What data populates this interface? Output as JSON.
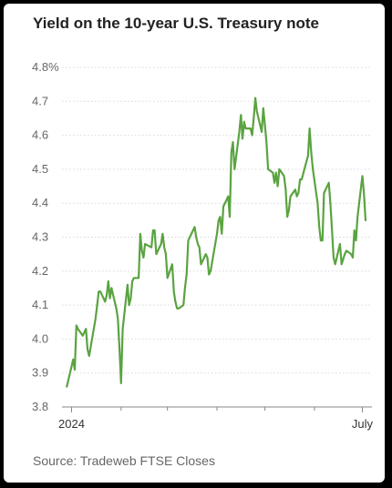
{
  "title": "Yield on the 10-year U.S. Treasury note",
  "source": "Source: Tradeweb FTSE Closes",
  "colors": {
    "line": "#5aa341",
    "grid": "#d9d9d9",
    "axis": "#888888"
  },
  "chart_data": {
    "type": "line",
    "title": "Yield on the 10-year U.S. Treasury note",
    "xlabel": "",
    "ylabel": "",
    "ylim": [
      3.8,
      4.8
    ],
    "y_ticks": [
      "3.8",
      "3.9",
      "4.0",
      "4.1",
      "4.2",
      "4.3",
      "4.4",
      "4.5",
      "4.6",
      "4.7",
      "4.8%"
    ],
    "x_tick_labels": [
      {
        "date": "2024-01-01",
        "label": "2024"
      },
      {
        "date": "2024-07-01",
        "label": "July"
      }
    ],
    "x_minor_ticks": [
      "2024-02-01",
      "2024-03-01",
      "2024-04-01",
      "2024-05-01",
      "2024-06-01"
    ],
    "grid": true,
    "series": [
      {
        "values": [
          [
            "2023-12-29",
            3.86
          ],
          [
            "2024-01-02",
            3.94
          ],
          [
            "2024-01-03",
            3.91
          ],
          [
            "2024-01-04",
            4.04
          ],
          [
            "2024-01-05",
            4.03
          ],
          [
            "2024-01-08",
            4.01
          ],
          [
            "2024-01-09",
            4.02
          ],
          [
            "2024-01-10",
            4.03
          ],
          [
            "2024-01-11",
            3.97
          ],
          [
            "2024-01-12",
            3.95
          ],
          [
            "2024-01-16",
            4.06
          ],
          [
            "2024-01-17",
            4.1
          ],
          [
            "2024-01-18",
            4.14
          ],
          [
            "2024-01-19",
            4.14
          ],
          [
            "2024-01-22",
            4.11
          ],
          [
            "2024-01-23",
            4.13
          ],
          [
            "2024-01-24",
            4.17
          ],
          [
            "2024-01-25",
            4.12
          ],
          [
            "2024-01-26",
            4.15
          ],
          [
            "2024-01-29",
            4.09
          ],
          [
            "2024-01-30",
            4.06
          ],
          [
            "2024-01-31",
            3.97
          ],
          [
            "2024-02-01",
            3.87
          ],
          [
            "2024-02-02",
            4.03
          ],
          [
            "2024-02-05",
            4.16
          ],
          [
            "2024-02-06",
            4.1
          ],
          [
            "2024-02-07",
            4.12
          ],
          [
            "2024-02-08",
            4.17
          ],
          [
            "2024-02-09",
            4.18
          ],
          [
            "2024-02-12",
            4.18
          ],
          [
            "2024-02-13",
            4.31
          ],
          [
            "2024-02-14",
            4.26
          ],
          [
            "2024-02-15",
            4.24
          ],
          [
            "2024-02-16",
            4.28
          ],
          [
            "2024-02-20",
            4.27
          ],
          [
            "2024-02-21",
            4.32
          ],
          [
            "2024-02-22",
            4.32
          ],
          [
            "2024-02-23",
            4.25
          ],
          [
            "2024-02-26",
            4.28
          ],
          [
            "2024-02-27",
            4.31
          ],
          [
            "2024-02-28",
            4.27
          ],
          [
            "2024-02-29",
            4.25
          ],
          [
            "2024-03-01",
            4.18
          ],
          [
            "2024-03-04",
            4.22
          ],
          [
            "2024-03-05",
            4.14
          ],
          [
            "2024-03-06",
            4.11
          ],
          [
            "2024-03-07",
            4.09
          ],
          [
            "2024-03-08",
            4.09
          ],
          [
            "2024-03-11",
            4.1
          ],
          [
            "2024-03-12",
            4.15
          ],
          [
            "2024-03-13",
            4.19
          ],
          [
            "2024-03-14",
            4.29
          ],
          [
            "2024-03-15",
            4.3
          ],
          [
            "2024-03-18",
            4.33
          ],
          [
            "2024-03-19",
            4.3
          ],
          [
            "2024-03-20",
            4.28
          ],
          [
            "2024-03-21",
            4.27
          ],
          [
            "2024-03-22",
            4.22
          ],
          [
            "2024-03-25",
            4.25
          ],
          [
            "2024-03-26",
            4.24
          ],
          [
            "2024-03-27",
            4.19
          ],
          [
            "2024-03-28",
            4.2
          ],
          [
            "2024-04-01",
            4.31
          ],
          [
            "2024-04-02",
            4.35
          ],
          [
            "2024-04-03",
            4.36
          ],
          [
            "2024-04-04",
            4.31
          ],
          [
            "2024-04-05",
            4.39
          ],
          [
            "2024-04-08",
            4.42
          ],
          [
            "2024-04-09",
            4.36
          ],
          [
            "2024-04-10",
            4.55
          ],
          [
            "2024-04-11",
            4.58
          ],
          [
            "2024-04-12",
            4.5
          ],
          [
            "2024-04-15",
            4.61
          ],
          [
            "2024-04-16",
            4.66
          ],
          [
            "2024-04-17",
            4.59
          ],
          [
            "2024-04-18",
            4.64
          ],
          [
            "2024-04-19",
            4.62
          ],
          [
            "2024-04-22",
            4.62
          ],
          [
            "2024-04-23",
            4.6
          ],
          [
            "2024-04-24",
            4.65
          ],
          [
            "2024-04-25",
            4.71
          ],
          [
            "2024-04-26",
            4.67
          ],
          [
            "2024-04-29",
            4.61
          ],
          [
            "2024-04-30",
            4.68
          ],
          [
            "2024-05-01",
            4.63
          ],
          [
            "2024-05-02",
            4.58
          ],
          [
            "2024-05-03",
            4.5
          ],
          [
            "2024-05-06",
            4.49
          ],
          [
            "2024-05-07",
            4.46
          ],
          [
            "2024-05-08",
            4.49
          ],
          [
            "2024-05-09",
            4.45
          ],
          [
            "2024-05-10",
            4.5
          ],
          [
            "2024-05-13",
            4.48
          ],
          [
            "2024-05-14",
            4.44
          ],
          [
            "2024-05-15",
            4.36
          ],
          [
            "2024-05-16",
            4.38
          ],
          [
            "2024-05-17",
            4.42
          ],
          [
            "2024-05-20",
            4.44
          ],
          [
            "2024-05-21",
            4.42
          ],
          [
            "2024-05-22",
            4.43
          ],
          [
            "2024-05-23",
            4.47
          ],
          [
            "2024-05-24",
            4.47
          ],
          [
            "2024-05-28",
            4.54
          ],
          [
            "2024-05-29",
            4.62
          ],
          [
            "2024-05-30",
            4.55
          ],
          [
            "2024-05-31",
            4.5
          ],
          [
            "2024-06-03",
            4.4
          ],
          [
            "2024-06-04",
            4.33
          ],
          [
            "2024-06-05",
            4.29
          ],
          [
            "2024-06-06",
            4.29
          ],
          [
            "2024-06-07",
            4.43
          ],
          [
            "2024-06-10",
            4.46
          ],
          [
            "2024-06-11",
            4.4
          ],
          [
            "2024-06-12",
            4.32
          ],
          [
            "2024-06-13",
            4.24
          ],
          [
            "2024-06-14",
            4.22
          ],
          [
            "2024-06-17",
            4.28
          ],
          [
            "2024-06-18",
            4.22
          ],
          [
            "2024-06-20",
            4.25
          ],
          [
            "2024-06-21",
            4.26
          ],
          [
            "2024-06-24",
            4.25
          ],
          [
            "2024-06-25",
            4.24
          ],
          [
            "2024-06-26",
            4.32
          ],
          [
            "2024-06-27",
            4.29
          ],
          [
            "2024-06-28",
            4.36
          ],
          [
            "2024-07-01",
            4.48
          ],
          [
            "2024-07-02",
            4.43
          ],
          [
            "2024-07-03",
            4.35
          ]
        ]
      }
    ]
  }
}
